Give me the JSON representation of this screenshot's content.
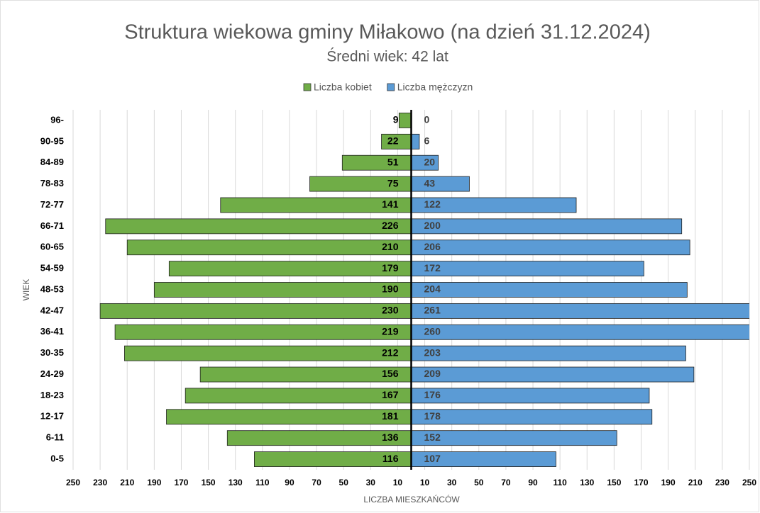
{
  "chart_data": {
    "type": "pyramid",
    "title": "Struktura wiekowa gminy Miłakowo (na dzień 31.12.2024)",
    "subtitle": "Średni wiek: 42 lat",
    "x_label": "LICZBA MIESZKAŃCÓW",
    "y_label": "WIEK",
    "legend": "top",
    "categories": [
      "96-",
      "90-95",
      "84-89",
      "78-83",
      "72-77",
      "66-71",
      "60-65",
      "54-59",
      "48-53",
      "42-47",
      "36-41",
      "30-35",
      "24-29",
      "18-23",
      "12-17",
      "6-11",
      "0-5"
    ],
    "series": [
      {
        "name": "Liczba kobiet",
        "color": "#70ad47",
        "side": "left",
        "values": [
          9,
          22,
          51,
          75,
          141,
          226,
          210,
          179,
          190,
          230,
          219,
          212,
          156,
          167,
          181,
          136,
          116
        ]
      },
      {
        "name": "Liczba mężczyzn",
        "color": "#5b9bd5",
        "side": "right",
        "values": [
          0,
          6,
          20,
          43,
          122,
          200,
          206,
          172,
          204,
          261,
          260,
          203,
          209,
          176,
          178,
          152,
          107
        ]
      }
    ],
    "xlim": [
      -250,
      250
    ],
    "xticks": [
      {
        "value": -250,
        "label": "250"
      },
      {
        "value": -230,
        "label": "230"
      },
      {
        "value": -210,
        "label": "210"
      },
      {
        "value": -190,
        "label": "190"
      },
      {
        "value": -170,
        "label": "170"
      },
      {
        "value": -150,
        "label": "150"
      },
      {
        "value": -130,
        "label": "130"
      },
      {
        "value": -110,
        "label": "110"
      },
      {
        "value": -90,
        "label": "90"
      },
      {
        "value": -70,
        "label": "70"
      },
      {
        "value": -50,
        "label": "50"
      },
      {
        "value": -30,
        "label": "30"
      },
      {
        "value": -10,
        "label": "10"
      },
      10,
      30,
      50,
      70,
      90,
      110,
      130,
      150,
      170,
      190,
      210,
      230,
      250
    ],
    "grid": true
  }
}
